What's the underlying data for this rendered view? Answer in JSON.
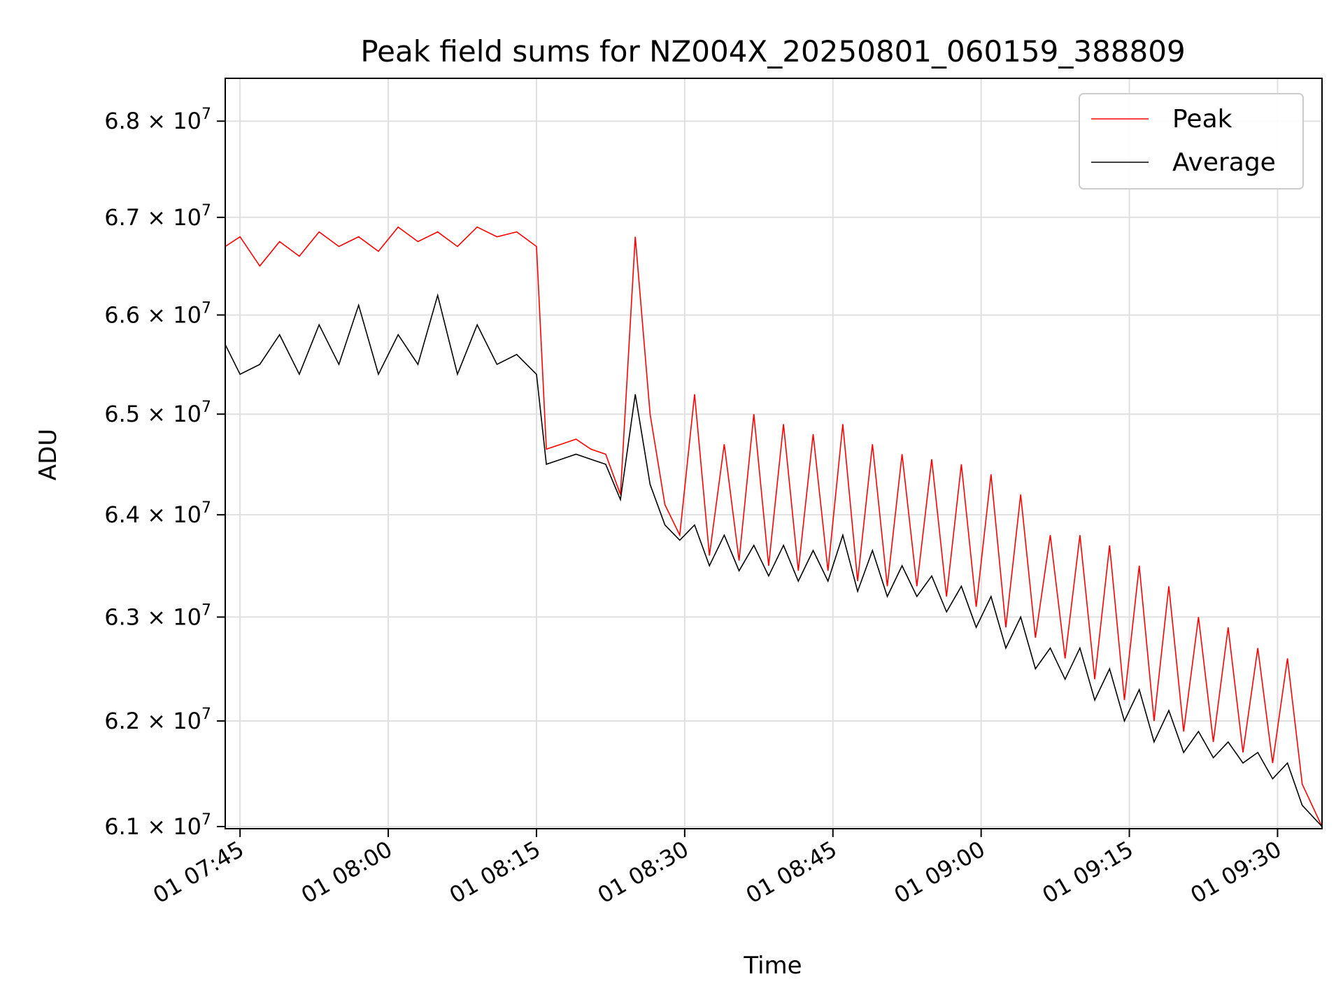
{
  "chart_data": {
    "type": "line",
    "title": "Peak field sums for NZ004X_20250801_060159_388809",
    "xlabel": "Time",
    "ylabel": "ADU",
    "x_tick_labels": [
      "01 07:45",
      "01 08:00",
      "01 08:15",
      "01 08:30",
      "01 08:45",
      "01 09:00",
      "01 09:15",
      "01 09:30"
    ],
    "x_tick_minutes": [
      465,
      480,
      495,
      510,
      525,
      540,
      555,
      570
    ],
    "xlim_minutes": [
      463.5,
      574.5
    ],
    "y_tick_labels": [
      {
        "mantissa": "6.1",
        "exp": "7"
      },
      {
        "mantissa": "6.2",
        "exp": "7"
      },
      {
        "mantissa": "6.3",
        "exp": "7"
      },
      {
        "mantissa": "6.4",
        "exp": "7"
      },
      {
        "mantissa": "6.5",
        "exp": "7"
      },
      {
        "mantissa": "6.6",
        "exp": "7"
      },
      {
        "mantissa": "6.7",
        "exp": "7"
      },
      {
        "mantissa": "6.8",
        "exp": "7"
      }
    ],
    "y_tick_values": [
      61000000,
      62000000,
      63000000,
      64000000,
      65000000,
      66000000,
      67000000,
      68000000
    ],
    "ylim": [
      60980000,
      68450000
    ],
    "y_scale": "log",
    "grid": true,
    "legend_position": "top-right",
    "series": [
      {
        "name": "Peak",
        "color": "#ff0000",
        "x": [
          463.5,
          465,
          467,
          469,
          471,
          473,
          475,
          477,
          479,
          481,
          483,
          485,
          487,
          489,
          491,
          493,
          495,
          496,
          497.5,
          499,
          500.5,
          502,
          503.5,
          505,
          506.5,
          508,
          509.5,
          511,
          512.5,
          514,
          515.5,
          517,
          518.5,
          520,
          521.5,
          523,
          524.5,
          526,
          527.5,
          529,
          530.5,
          532,
          533.5,
          535,
          536.5,
          538,
          539.5,
          541,
          542.5,
          544,
          545.5,
          547,
          548.5,
          550,
          551.5,
          553,
          554.5,
          556,
          557.5,
          559,
          560.5,
          562,
          563.5,
          565,
          566.5,
          568,
          569.5,
          571,
          572.5,
          574.5
        ],
        "y": [
          66700000,
          66800000,
          66500000,
          66750000,
          66600000,
          66850000,
          66700000,
          66800000,
          66650000,
          66900000,
          66750000,
          66850000,
          66700000,
          66900000,
          66800000,
          66850000,
          66700000,
          64650000,
          64700000,
          64750000,
          64650000,
          64600000,
          64200000,
          66800000,
          65000000,
          64100000,
          63800000,
          65200000,
          63600000,
          64700000,
          63550000,
          65000000,
          63500000,
          64900000,
          63450000,
          64800000,
          63450000,
          64900000,
          63350000,
          64700000,
          63300000,
          64600000,
          63300000,
          64550000,
          63200000,
          64500000,
          63100000,
          64400000,
          62900000,
          64200000,
          62800000,
          63800000,
          62600000,
          63800000,
          62400000,
          63700000,
          62200000,
          63500000,
          62000000,
          63300000,
          61900000,
          63000000,
          61800000,
          62900000,
          61700000,
          62700000,
          61600000,
          62600000,
          61400000,
          61000000
        ]
      },
      {
        "name": "Average",
        "color": "#000000",
        "x": [
          463.5,
          465,
          467,
          469,
          471,
          473,
          475,
          477,
          479,
          481,
          483,
          485,
          487,
          489,
          491,
          493,
          495,
          496,
          497.5,
          499,
          500.5,
          502,
          503.5,
          505,
          506.5,
          508,
          509.5,
          511,
          512.5,
          514,
          515.5,
          517,
          518.5,
          520,
          521.5,
          523,
          524.5,
          526,
          527.5,
          529,
          530.5,
          532,
          533.5,
          535,
          536.5,
          538,
          539.5,
          541,
          542.5,
          544,
          545.5,
          547,
          548.5,
          550,
          551.5,
          553,
          554.5,
          556,
          557.5,
          559,
          560.5,
          562,
          563.5,
          565,
          566.5,
          568,
          569.5,
          571,
          572.5,
          574.5
        ],
        "y": [
          65700000,
          65400000,
          65500000,
          65800000,
          65400000,
          65900000,
          65500000,
          66100000,
          65400000,
          65800000,
          65500000,
          66200000,
          65400000,
          65900000,
          65500000,
          65600000,
          65400000,
          64500000,
          64550000,
          64600000,
          64550000,
          64500000,
          64150000,
          65200000,
          64300000,
          63900000,
          63750000,
          63900000,
          63500000,
          63800000,
          63450000,
          63700000,
          63400000,
          63700000,
          63350000,
          63650000,
          63350000,
          63800000,
          63250000,
          63650000,
          63200000,
          63500000,
          63200000,
          63400000,
          63050000,
          63300000,
          62900000,
          63200000,
          62700000,
          63000000,
          62500000,
          62700000,
          62400000,
          62700000,
          62200000,
          62500000,
          62000000,
          62300000,
          61800000,
          62100000,
          61700000,
          61900000,
          61650000,
          61800000,
          61600000,
          61700000,
          61450000,
          61600000,
          61200000,
          61000000
        ]
      }
    ]
  }
}
